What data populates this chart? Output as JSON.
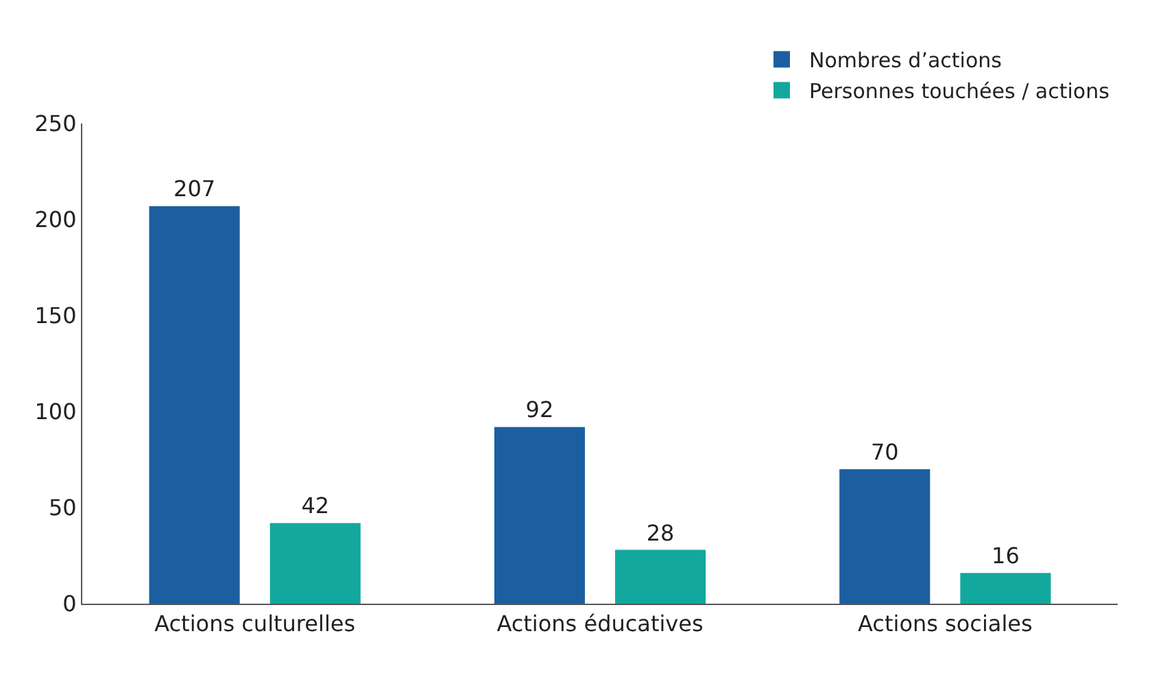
{
  "chart_data": {
    "type": "bar",
    "categories": [
      "Actions culturelles",
      "Actions éducatives",
      "Actions sociales"
    ],
    "series": [
      {
        "name": "Nombres d’actions",
        "color": "#1c5fa0",
        "values": [
          207,
          92,
          70
        ]
      },
      {
        "name": "Personnes touchées / actions",
        "color": "#13a89e",
        "values": [
          42,
          28,
          16
        ]
      }
    ],
    "ylim": [
      0,
      250
    ],
    "yticks": [
      0,
      50,
      100,
      150,
      200,
      250
    ],
    "legend": "top right",
    "data_labels": true
  }
}
